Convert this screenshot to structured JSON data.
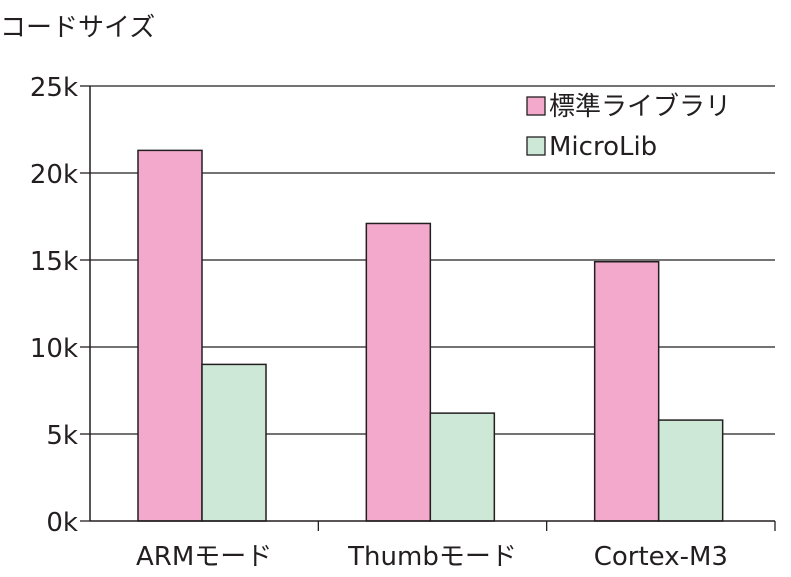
{
  "chart_data": {
    "type": "bar",
    "ylabel": "コードサイズ",
    "categories": [
      "ARMモード",
      "Thumbモード",
      "Cortex-M3"
    ],
    "series": [
      {
        "name": "標準ライブラリ",
        "values": [
          21300,
          17100,
          14900
        ],
        "color": "#f3a9cb"
      },
      {
        "name": "MicroLib",
        "values": [
          9000,
          6200,
          5800
        ],
        "color": "#cde8d6"
      }
    ],
    "ylim": [
      0,
      25000
    ],
    "yticks": [
      0,
      5000,
      10000,
      15000,
      20000,
      25000
    ],
    "ytick_labels": [
      "0k",
      "5k",
      "10k",
      "15k",
      "20k",
      "25k"
    ],
    "grid": true,
    "legend": "top-right"
  }
}
